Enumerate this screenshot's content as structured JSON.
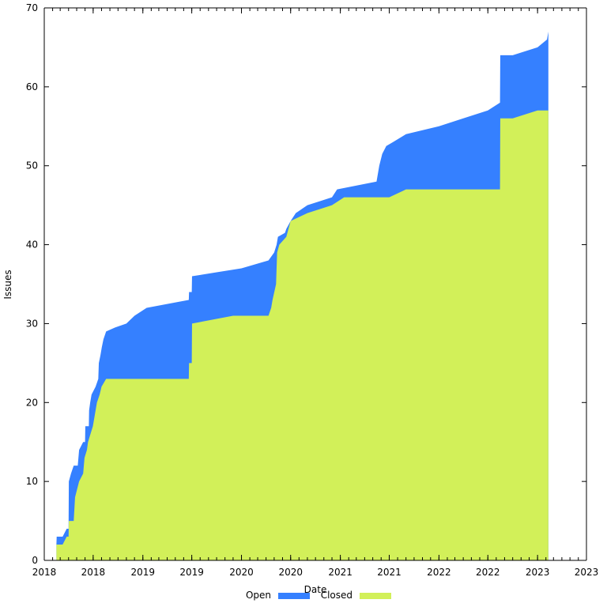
{
  "chart_data": {
    "type": "area",
    "title": "",
    "xlabel": "Date",
    "ylabel": "Issues",
    "ylim": [
      0,
      70
    ],
    "xlim": [
      "2018-01-01",
      "2023-07-01"
    ],
    "y_ticks": [
      0,
      10,
      20,
      30,
      40,
      50,
      60,
      70
    ],
    "x_ticks": [
      {
        "date": "2018-01-01",
        "label": "2018"
      },
      {
        "date": "2018-07-01",
        "label": "2018"
      },
      {
        "date": "2019-01-01",
        "label": "2019"
      },
      {
        "date": "2019-07-01",
        "label": "2019"
      },
      {
        "date": "2020-01-01",
        "label": "2020"
      },
      {
        "date": "2020-07-01",
        "label": "2020"
      },
      {
        "date": "2021-01-01",
        "label": "2021"
      },
      {
        "date": "2021-07-01",
        "label": "2021"
      },
      {
        "date": "2022-01-01",
        "label": "2022"
      },
      {
        "date": "2022-07-01",
        "label": "2022"
      },
      {
        "date": "2023-01-01",
        "label": "2023"
      },
      {
        "date": "2023-07-01",
        "label": "2023"
      }
    ],
    "grid": false,
    "legend": "bottom",
    "stacked": true,
    "series": [
      {
        "name": "Open",
        "color": "#3580ff",
        "total": [
          [
            "2018-02-15",
            2
          ],
          [
            "2018-02-16",
            3
          ],
          [
            "2018-03-10",
            3
          ],
          [
            "2018-03-25",
            4
          ],
          [
            "2018-04-01",
            4
          ],
          [
            "2018-04-02",
            10
          ],
          [
            "2018-04-10",
            11
          ],
          [
            "2018-04-20",
            12
          ],
          [
            "2018-05-05",
            12
          ],
          [
            "2018-05-10",
            14
          ],
          [
            "2018-05-25",
            15
          ],
          [
            "2018-06-01",
            15
          ],
          [
            "2018-06-02",
            17
          ],
          [
            "2018-06-15",
            17
          ],
          [
            "2018-06-16",
            19
          ],
          [
            "2018-06-20",
            20
          ],
          [
            "2018-06-25",
            21
          ],
          [
            "2018-07-10",
            22
          ],
          [
            "2018-07-20",
            23
          ],
          [
            "2018-07-22",
            25
          ],
          [
            "2018-07-28",
            26
          ],
          [
            "2018-08-02",
            27
          ],
          [
            "2018-08-08",
            28
          ],
          [
            "2018-08-18",
            29
          ],
          [
            "2018-09-20",
            29.5
          ],
          [
            "2018-11-01",
            30
          ],
          [
            "2018-12-01",
            31
          ],
          [
            "2019-01-15",
            32
          ],
          [
            "2019-06-20",
            33
          ],
          [
            "2019-06-21",
            34
          ],
          [
            "2019-07-01",
            34
          ],
          [
            "2019-07-02",
            36
          ],
          [
            "2019-10-01",
            36.5
          ],
          [
            "2020-01-01",
            37
          ],
          [
            "2020-04-10",
            38
          ],
          [
            "2020-05-01",
            39
          ],
          [
            "2020-05-10",
            40
          ],
          [
            "2020-05-15",
            41
          ],
          [
            "2020-06-10",
            41.5
          ],
          [
            "2020-06-15",
            42
          ],
          [
            "2020-07-01",
            43
          ],
          [
            "2020-07-20",
            44
          ],
          [
            "2020-09-01",
            45
          ],
          [
            "2020-12-01",
            46
          ],
          [
            "2020-12-20",
            47
          ],
          [
            "2021-05-15",
            48
          ],
          [
            "2021-05-25",
            50
          ],
          [
            "2021-06-05",
            51.5
          ],
          [
            "2021-06-20",
            52.5
          ],
          [
            "2021-07-15",
            53
          ],
          [
            "2021-09-01",
            54
          ],
          [
            "2022-01-01",
            55
          ],
          [
            "2022-04-01",
            56
          ],
          [
            "2022-07-01",
            57
          ],
          [
            "2022-08-15",
            58
          ],
          [
            "2022-08-16",
            64
          ],
          [
            "2022-10-01",
            64
          ],
          [
            "2023-01-01",
            65
          ],
          [
            "2023-02-05",
            66
          ],
          [
            "2023-02-10",
            67
          ]
        ]
      },
      {
        "name": "Closed",
        "color": "#d2f059",
        "total": [
          [
            "2018-02-15",
            2
          ],
          [
            "2018-03-10",
            2
          ],
          [
            "2018-03-25",
            3
          ],
          [
            "2018-04-01",
            3
          ],
          [
            "2018-04-02",
            5
          ],
          [
            "2018-04-20",
            5
          ],
          [
            "2018-04-25",
            8
          ],
          [
            "2018-05-10",
            10
          ],
          [
            "2018-05-25",
            11
          ],
          [
            "2018-05-30",
            13
          ],
          [
            "2018-06-08",
            14
          ],
          [
            "2018-06-12",
            15
          ],
          [
            "2018-06-30",
            17
          ],
          [
            "2018-07-05",
            18
          ],
          [
            "2018-07-15",
            20
          ],
          [
            "2018-07-25",
            21
          ],
          [
            "2018-08-01",
            22
          ],
          [
            "2018-08-18",
            23
          ],
          [
            "2019-06-20",
            23
          ],
          [
            "2019-06-21",
            25
          ],
          [
            "2019-07-01",
            25
          ],
          [
            "2019-07-02",
            30
          ],
          [
            "2019-12-01",
            31
          ],
          [
            "2020-04-10",
            31
          ],
          [
            "2020-04-20",
            32
          ],
          [
            "2020-04-25",
            33
          ],
          [
            "2020-05-08",
            35
          ],
          [
            "2020-05-12",
            39
          ],
          [
            "2020-05-20",
            40
          ],
          [
            "2020-06-15",
            41
          ],
          [
            "2020-07-01",
            43
          ],
          [
            "2020-09-01",
            44
          ],
          [
            "2020-12-01",
            45
          ],
          [
            "2021-01-15",
            46
          ],
          [
            "2021-07-01",
            46
          ],
          [
            "2021-09-01",
            47
          ],
          [
            "2022-08-15",
            47
          ],
          [
            "2022-08-16",
            56
          ],
          [
            "2022-10-01",
            56
          ],
          [
            "2023-01-01",
            57
          ],
          [
            "2023-02-10",
            57
          ]
        ]
      }
    ]
  }
}
